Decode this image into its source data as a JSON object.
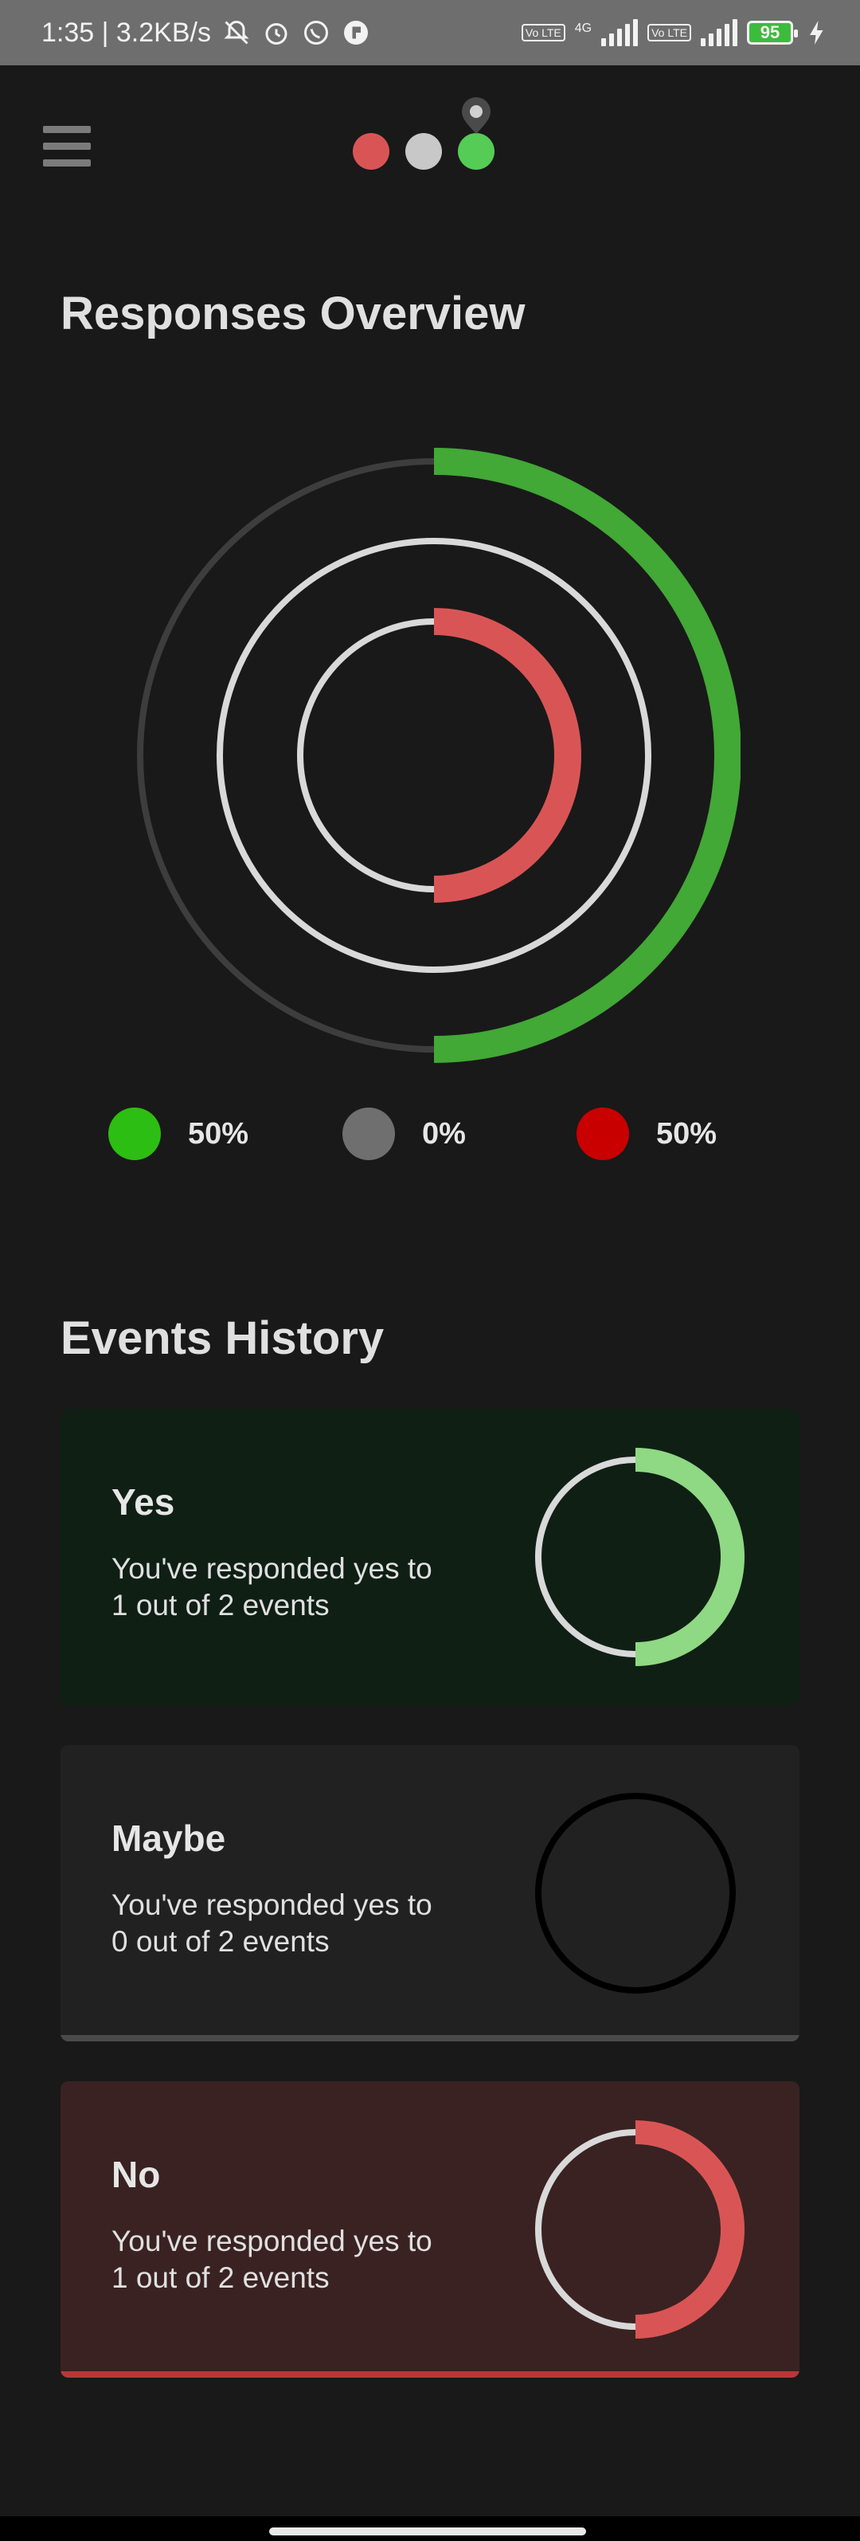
{
  "status_bar": {
    "time_speed": "1:35 | 3.2KB/s",
    "volte_label": "Vo LTE",
    "network_label": "4G",
    "battery": "95"
  },
  "overview": {
    "title": "Responses Overview",
    "legend": [
      {
        "label": "50%",
        "color": "#2cbe12"
      },
      {
        "label": "0%",
        "color": "#6f6f6f"
      },
      {
        "label": "50%",
        "color": "#c90000"
      }
    ],
    "rings": [
      {
        "name": "yes",
        "fraction": 0.5,
        "color": "#42a836",
        "track": "#3d3d3d"
      },
      {
        "name": "maybe",
        "fraction": 0.0,
        "color": "#8f8f8f",
        "track": "#d9d9d9"
      },
      {
        "name": "no",
        "fraction": 0.5,
        "color": "#d95555",
        "track": "#d9d9d9"
      }
    ]
  },
  "history": {
    "title": "Events History",
    "cards": [
      {
        "title": "Yes",
        "description": "You've responded yes to\n1 out of 2 events",
        "fraction": 0.5,
        "color": "#8fd884",
        "track": "#d9d9d9",
        "background": "#0f1f14",
        "bar": "#0f1f14"
      },
      {
        "title": "Maybe",
        "description": "You've responded yes to\n0 out of 2 events",
        "fraction": 0.0,
        "color": "#000000",
        "track": "#000000",
        "background": "#212121",
        "bar": "#4a4a4a"
      },
      {
        "title": "No",
        "description": "You've responded yes to\n1 out of 2 events",
        "fraction": 0.5,
        "color": "#d95555",
        "track": "#d9d9d9",
        "background": "#3a2222",
        "bar": "#b53939"
      }
    ]
  },
  "logo": {
    "dots": [
      "#d95555",
      "#c8c8c8",
      "#55cc55"
    ],
    "pin_color": "#4a4a4a"
  }
}
